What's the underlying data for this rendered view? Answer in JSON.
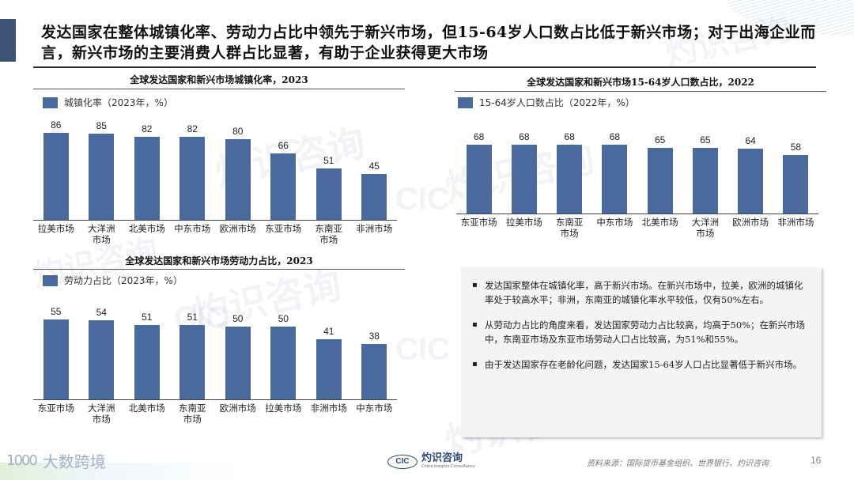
{
  "slide": {
    "title": "发达国家在整体城镇化率、劳动力占比中领先于新兴市场，但15-64岁人口数占比低于新兴市场；对于出海企业而言，新兴市场的主要消费人群占比显著，有助于企业获得更大市场",
    "page_number": "16",
    "source": "资料来源：国际货币基金组织、世界银行、灼识咨询",
    "accent_color": "#3d5275",
    "bar_color": "#4a6a9e"
  },
  "watermark": {
    "cn": "灼识咨询",
    "en": "China Insights Consultancy",
    "abbr": "CIC"
  },
  "footer": {
    "left_logo_text": "大数跨境",
    "left_logo_mark": "1000",
    "cic_logo_abbr": "CIC",
    "cic_logo_cn": "灼识咨询",
    "cic_logo_en": "China Insights Consultancy"
  },
  "notes": [
    "发达国家整体在城镇化率，高于新兴市场。在新兴市场中，拉美，欧洲的城镇化率处于较高水平；非洲，东南亚的城镇化率水平较低，仅有50%左右。",
    "从劳动力占比的角度来看，发达国家劳动力占比较高，均高于50%；在新兴市场中，东南亚市场及东亚市场劳动人口占比较高，为51%和55%。",
    "由于发达国家存在老龄化问题，发达国家15-64岁人口占比显著低于新兴市场。"
  ],
  "chart_data": [
    {
      "type": "bar",
      "title": "全球发达国家和新兴市场城镇化率，2023",
      "legend": "城镇化率（2023年，%）",
      "categories": [
        "拉美市场",
        "大洋洲市场",
        "北美市场",
        "中东市场",
        "欧洲市场",
        "东亚市场",
        "东南亚市场",
        "非洲市场"
      ],
      "category_lines": [
        [
          "拉美市场"
        ],
        [
          "大洋洲",
          "市场"
        ],
        [
          "北美市场"
        ],
        [
          "中东市场"
        ],
        [
          "欧洲市场"
        ],
        [
          "东亚市场"
        ],
        [
          "东南亚",
          "市场"
        ],
        [
          "非洲市场"
        ]
      ],
      "values": [
        86,
        85,
        82,
        82,
        80,
        66,
        51,
        45
      ],
      "xlabel": "",
      "ylabel": "",
      "ylim": [
        0,
        90
      ],
      "grid": false,
      "legend_position": "top-left"
    },
    {
      "type": "bar",
      "title": "全球发达国家和新兴市场15-64岁人口数占比，2022",
      "legend": "15-64岁人口数占比（2022年，%）",
      "categories": [
        "东亚市场",
        "拉美市场",
        "东南亚市场",
        "中东市场",
        "北美市场",
        "大洋洲市场",
        "欧洲市场",
        "非洲市场"
      ],
      "category_lines": [
        [
          "东亚市场"
        ],
        [
          "拉美市场"
        ],
        [
          "东南亚",
          "市场"
        ],
        [
          "中东市场"
        ],
        [
          "北美市场"
        ],
        [
          "大洋洲",
          "市场"
        ],
        [
          "欧洲市场"
        ],
        [
          "非洲市场"
        ]
      ],
      "values": [
        68,
        68,
        68,
        68,
        65,
        65,
        64,
        58
      ],
      "xlabel": "",
      "ylabel": "",
      "ylim": [
        0,
        72
      ],
      "grid": false,
      "legend_position": "top-left"
    },
    {
      "type": "bar",
      "title": "全球发达国家和新兴市场劳动力占比，2023",
      "legend": "劳动力占比（2023年，%）",
      "categories": [
        "东亚市场",
        "大洋洲市场",
        "北美市场",
        "东南亚市场",
        "欧洲市场",
        "拉美市场",
        "非洲市场",
        "中东市场"
      ],
      "category_lines": [
        [
          "东亚市场"
        ],
        [
          "大洋洲",
          "市场"
        ],
        [
          "北美市场"
        ],
        [
          "东南亚",
          "市场"
        ],
        [
          "欧洲市场"
        ],
        [
          "拉美市场"
        ],
        [
          "非洲市场"
        ],
        [
          "中东市场"
        ]
      ],
      "values": [
        55,
        54,
        51,
        51,
        50,
        50,
        41,
        38
      ],
      "xlabel": "",
      "ylabel": "",
      "ylim": [
        0,
        58
      ],
      "grid": false,
      "legend_position": "top-left"
    }
  ]
}
